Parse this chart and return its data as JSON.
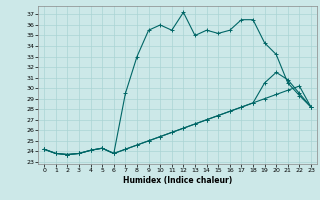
{
  "xlabel": "Humidex (Indice chaleur)",
  "xlim": [
    -0.5,
    23.5
  ],
  "ylim": [
    22.8,
    37.8
  ],
  "xticks": [
    0,
    1,
    2,
    3,
    4,
    5,
    6,
    7,
    8,
    9,
    10,
    11,
    12,
    13,
    14,
    15,
    16,
    17,
    18,
    19,
    20,
    21,
    22,
    23
  ],
  "yticks": [
    23,
    24,
    25,
    26,
    27,
    28,
    29,
    30,
    31,
    32,
    33,
    34,
    35,
    36,
    37
  ],
  "bg_color": "#cce8e8",
  "line_color": "#006666",
  "grid_color": "#aad4d4",
  "line1_x": [
    0,
    1,
    2,
    3,
    4,
    5,
    6,
    7,
    8,
    9,
    10,
    11,
    12,
    13,
    14,
    15,
    16,
    17,
    18,
    19,
    20,
    21,
    22,
    23
  ],
  "line1_y": [
    24.2,
    23.8,
    23.7,
    23.8,
    24.1,
    24.3,
    23.8,
    24.2,
    24.6,
    25.0,
    25.4,
    25.8,
    26.2,
    26.6,
    27.0,
    27.4,
    27.8,
    28.2,
    28.6,
    29.0,
    29.4,
    29.8,
    30.2,
    28.2
  ],
  "line2_x": [
    0,
    1,
    2,
    3,
    4,
    5,
    6,
    7,
    8,
    9,
    10,
    11,
    12,
    13,
    14,
    15,
    16,
    17,
    18,
    19,
    20,
    21,
    22,
    23
  ],
  "line2_y": [
    24.2,
    23.8,
    23.7,
    23.8,
    24.1,
    24.3,
    23.8,
    24.2,
    24.6,
    25.0,
    25.4,
    25.8,
    26.2,
    26.6,
    27.0,
    27.4,
    27.8,
    28.2,
    28.6,
    30.5,
    31.5,
    30.8,
    29.5,
    28.2
  ],
  "line3_x": [
    0,
    1,
    2,
    3,
    4,
    5,
    6,
    7,
    8,
    9,
    10,
    11,
    12,
    13,
    14,
    15,
    16,
    17,
    18,
    19,
    20,
    21,
    22,
    23
  ],
  "line3_y": [
    24.2,
    23.8,
    23.7,
    23.8,
    24.1,
    24.3,
    23.8,
    29.5,
    33.0,
    35.5,
    36.0,
    35.5,
    37.2,
    35.0,
    35.5,
    35.2,
    35.5,
    36.5,
    36.5,
    34.3,
    33.2,
    30.5,
    29.3,
    28.2
  ]
}
